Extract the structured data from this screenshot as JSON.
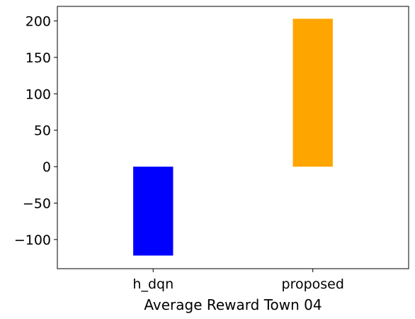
{
  "chart_data": {
    "type": "bar",
    "title": "",
    "xlabel": "Average Reward Town 04",
    "ylabel": "",
    "categories": [
      "h_dqn",
      "proposed"
    ],
    "values": [
      -122,
      203
    ],
    "bar_colors": [
      "#0000ff",
      "#ffa500"
    ],
    "ylim": [
      -140,
      220
    ],
    "yticks": [
      -100,
      -50,
      0,
      50,
      100,
      150,
      200
    ],
    "ytick_labels": [
      "−100",
      "−50",
      "0",
      "50",
      "100",
      "150",
      "200"
    ],
    "grid": false,
    "legend": "none"
  }
}
